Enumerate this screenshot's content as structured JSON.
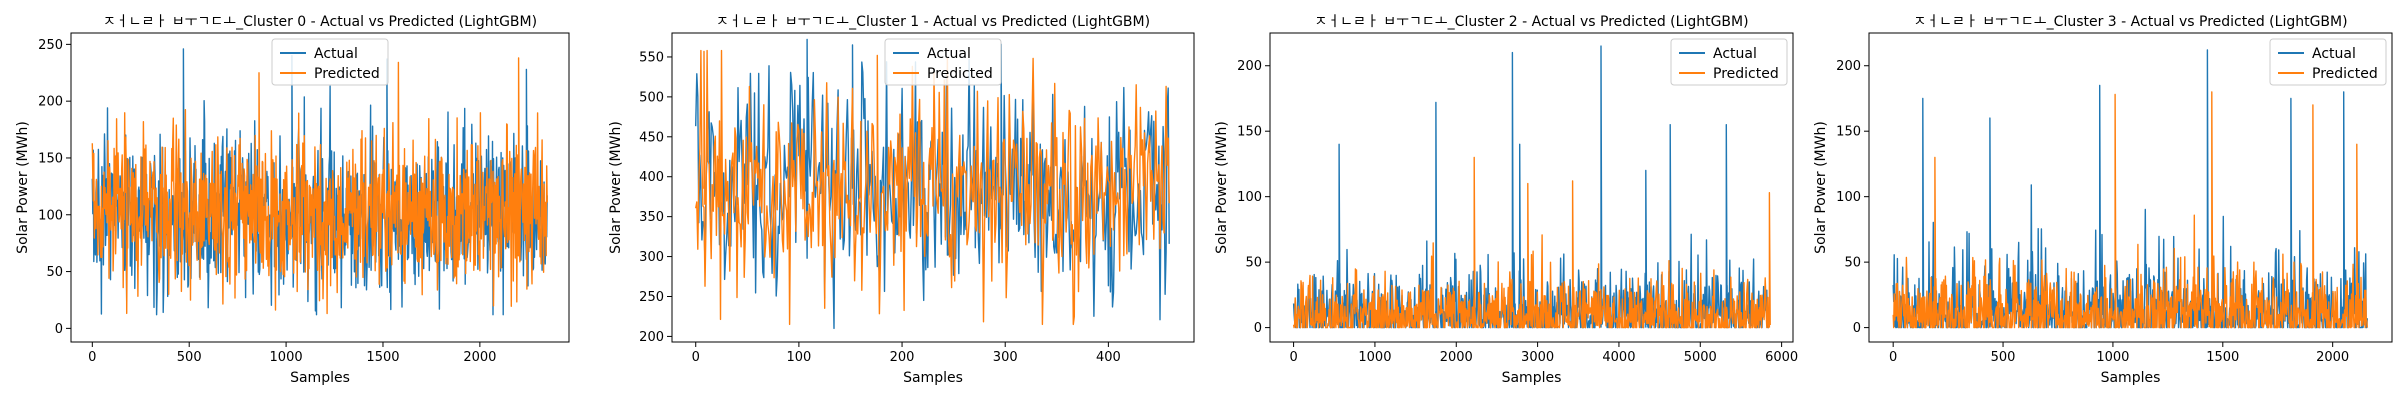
{
  "colors": {
    "actual": "#1f77b4",
    "predicted": "#ff7f0e"
  },
  "chart_data": [
    {
      "type": "line",
      "title": "ㅈㅓㄴㄹㅏ ㅂㅜㄱㄷㅗ_Cluster 0 - Actual vs Predicted (LightGBM)",
      "xlabel": "Samples",
      "ylabel": "Solar Power (MWh)",
      "n_samples": 2350,
      "xlim": [
        -110,
        2460
      ],
      "ylim": [
        -12,
        260
      ],
      "xticks": [
        0,
        500,
        1000,
        1500,
        2000
      ],
      "yticks": [
        0,
        50,
        100,
        150,
        200,
        250
      ],
      "legend_position": "upper center",
      "series": [
        {
          "name": "Actual",
          "mean": 100,
          "spread": 35,
          "min": 12,
          "max": 248,
          "peak_spikes": [
            [
              470,
              246
            ],
            [
              1030,
              240
            ],
            [
              1520,
              237
            ],
            [
              2240,
              228
            ]
          ]
        },
        {
          "name": "Predicted",
          "mean": 100,
          "spread": 33,
          "min": 8,
          "max": 238,
          "peak_spikes": [
            [
              860,
              225
            ],
            [
              2200,
              238
            ]
          ]
        }
      ]
    },
    {
      "type": "line",
      "title": "ㅈㅓㄴㄹㅏ ㅂㅜㄱㄷㅗ_Cluster 1 - Actual vs Predicted (LightGBM)",
      "xlabel": "Samples",
      "ylabel": "Solar Power (MWh)",
      "n_samples": 460,
      "xlim": [
        -23,
        483
      ],
      "ylim": [
        193,
        580
      ],
      "xticks": [
        0,
        100,
        200,
        300,
        400
      ],
      "yticks": [
        200,
        250,
        300,
        350,
        400,
        450,
        500,
        550
      ],
      "legend_position": "upper center",
      "series": [
        {
          "name": "Actual",
          "mean": 385,
          "spread": 70,
          "min": 210,
          "max": 572,
          "peak_spikes": [
            [
              108,
              572
            ],
            [
              152,
              565
            ],
            [
              296,
              566
            ]
          ]
        },
        {
          "name": "Predicted",
          "mean": 385,
          "spread": 62,
          "min": 215,
          "max": 558,
          "peak_spikes": [
            [
              8,
              557
            ],
            [
              176,
              552
            ]
          ]
        }
      ]
    },
    {
      "type": "line",
      "title": "ㅈㅓㄴㄹㅏ ㅂㅜㄱㄷㅗ_Cluster 2 - Actual vs Predicted (LightGBM)",
      "xlabel": "Samples",
      "ylabel": "Solar Power (MWh)",
      "n_samples": 5850,
      "xlim": [
        -290,
        6140
      ],
      "ylim": [
        -11,
        225
      ],
      "xticks": [
        0,
        1000,
        2000,
        3000,
        4000,
        5000,
        6000
      ],
      "yticks": [
        0,
        50,
        100,
        150,
        200
      ],
      "legend_position": "upper right",
      "series": [
        {
          "name": "Actual",
          "mean": 16,
          "spread": 18,
          "min": 0,
          "max": 215,
          "peak_spikes": [
            [
              560,
              140
            ],
            [
              1750,
              172
            ],
            [
              2690,
              210
            ],
            [
              2780,
              140
            ],
            [
              3780,
              215
            ],
            [
              4630,
              155
            ],
            [
              5320,
              155
            ],
            [
              4330,
              120
            ]
          ]
        },
        {
          "name": "Predicted",
          "mean": 16,
          "spread": 16,
          "min": 0,
          "max": 130,
          "peak_spikes": [
            [
              2220,
              130
            ],
            [
              2880,
              110
            ],
            [
              3430,
              112
            ],
            [
              5850,
              103
            ]
          ]
        }
      ]
    },
    {
      "type": "line",
      "title": "ㅈㅓㄴㄹㅏ ㅂㅜㄱㄷㅗ_Cluster 3 - Actual vs Predicted (LightGBM)",
      "xlabel": "Samples",
      "ylabel": "Solar Power (MWh)",
      "n_samples": 2160,
      "xlim": [
        -110,
        2270
      ],
      "ylim": [
        -11,
        225
      ],
      "xticks": [
        0,
        500,
        1000,
        1500,
        2000
      ],
      "yticks": [
        0,
        50,
        100,
        150,
        200
      ],
      "legend_position": "upper right",
      "series": [
        {
          "name": "Actual",
          "mean": 20,
          "spread": 22,
          "min": 0,
          "max": 212,
          "peak_spikes": [
            [
              135,
              175
            ],
            [
              440,
              160
            ],
            [
              940,
              185
            ],
            [
              1430,
              212
            ],
            [
              1810,
              175
            ],
            [
              2050,
              180
            ]
          ]
        },
        {
          "name": "Predicted",
          "mean": 20,
          "spread": 20,
          "min": 0,
          "max": 180,
          "peak_spikes": [
            [
              190,
              130
            ],
            [
              1010,
              178
            ],
            [
              1450,
              180
            ],
            [
              1910,
              170
            ],
            [
              2110,
              140
            ]
          ]
        }
      ]
    }
  ]
}
